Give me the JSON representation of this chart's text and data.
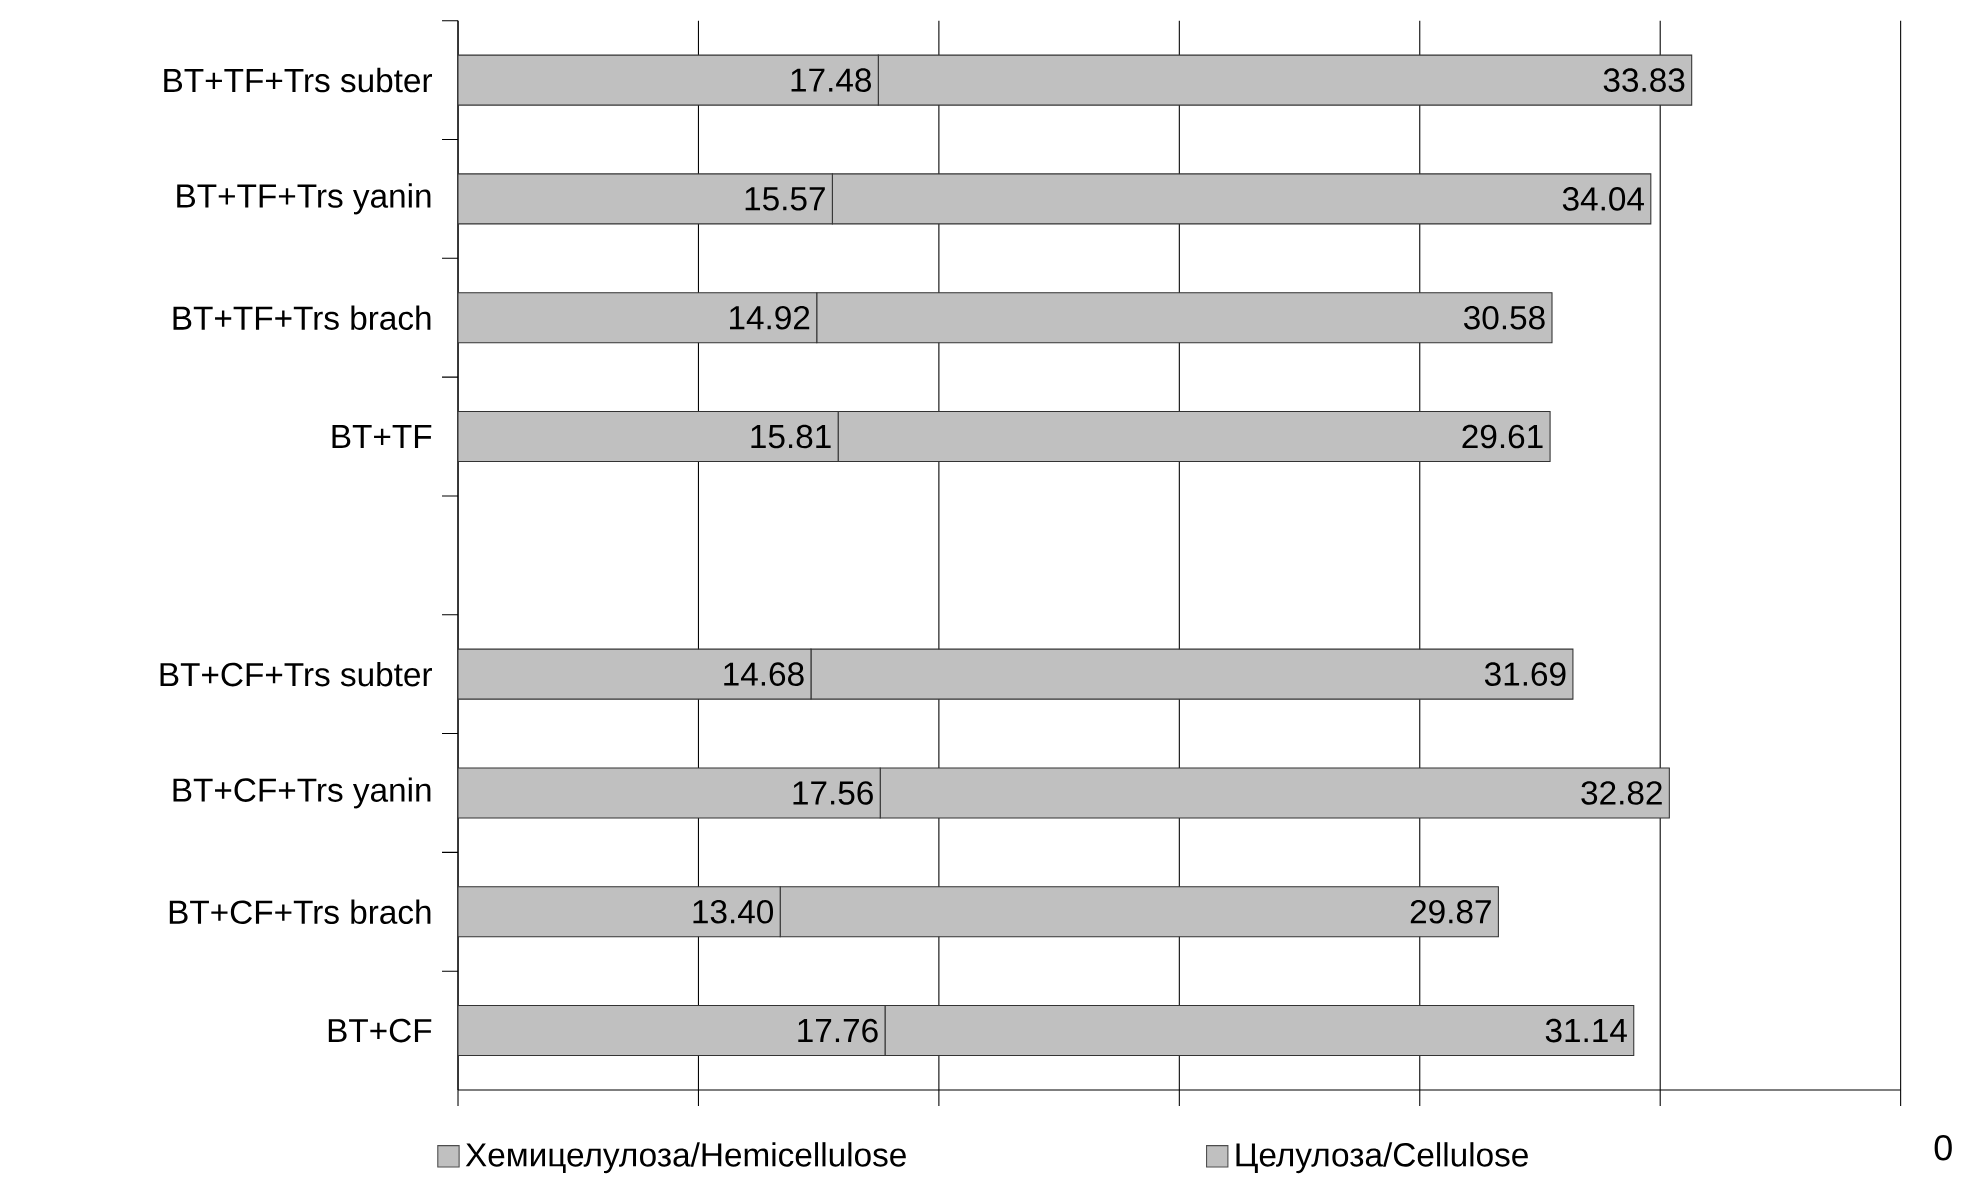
{
  "chart_data": {
    "type": "bar",
    "orientation": "horizontal",
    "stacked": true,
    "categories": [
      "BT+TF+Trs subter",
      "BT+TF+Trs yanin",
      "BT+TF+Trs brach",
      "BT+TF",
      null,
      "BT+CF+Trs subter",
      "BT+CF+Trs yanin",
      "BT+CF+Trs brach",
      "BT+CF"
    ],
    "series": [
      {
        "name": "Хемицелулоза/Hemicellulose",
        "color": "#c0c0c0",
        "values": [
          17.48,
          15.57,
          14.92,
          15.81,
          null,
          14.68,
          17.56,
          13.4,
          17.76
        ],
        "value_labels": [
          "17.48",
          "15.57",
          "14.92",
          "15.81",
          null,
          "14.68",
          "17.56",
          "13.40",
          "17.76"
        ]
      },
      {
        "name": "Целулоза/Cellulose",
        "color": "#c0c0c0",
        "values": [
          33.83,
          34.04,
          30.58,
          29.61,
          null,
          31.69,
          32.82,
          29.87,
          31.14
        ],
        "value_labels": [
          "33.83",
          "34.04",
          "30.58",
          "29.61",
          null,
          "31.69",
          "32.82",
          "29.87",
          "31.14"
        ]
      }
    ],
    "xlim": [
      0,
      60
    ],
    "xticks": [
      {
        "value": 0,
        "label": null
      },
      {
        "value": 10,
        "label": null
      },
      {
        "value": 20,
        "label": null
      },
      {
        "value": 30,
        "label": null
      },
      {
        "value": 40,
        "label": null
      },
      {
        "value": 50,
        "label": null
      },
      {
        "value": 60,
        "label": null
      }
    ],
    "tick_labels": "y",
    "grid": "x",
    "legend": "bottom",
    "annotations": [
      "0"
    ]
  }
}
